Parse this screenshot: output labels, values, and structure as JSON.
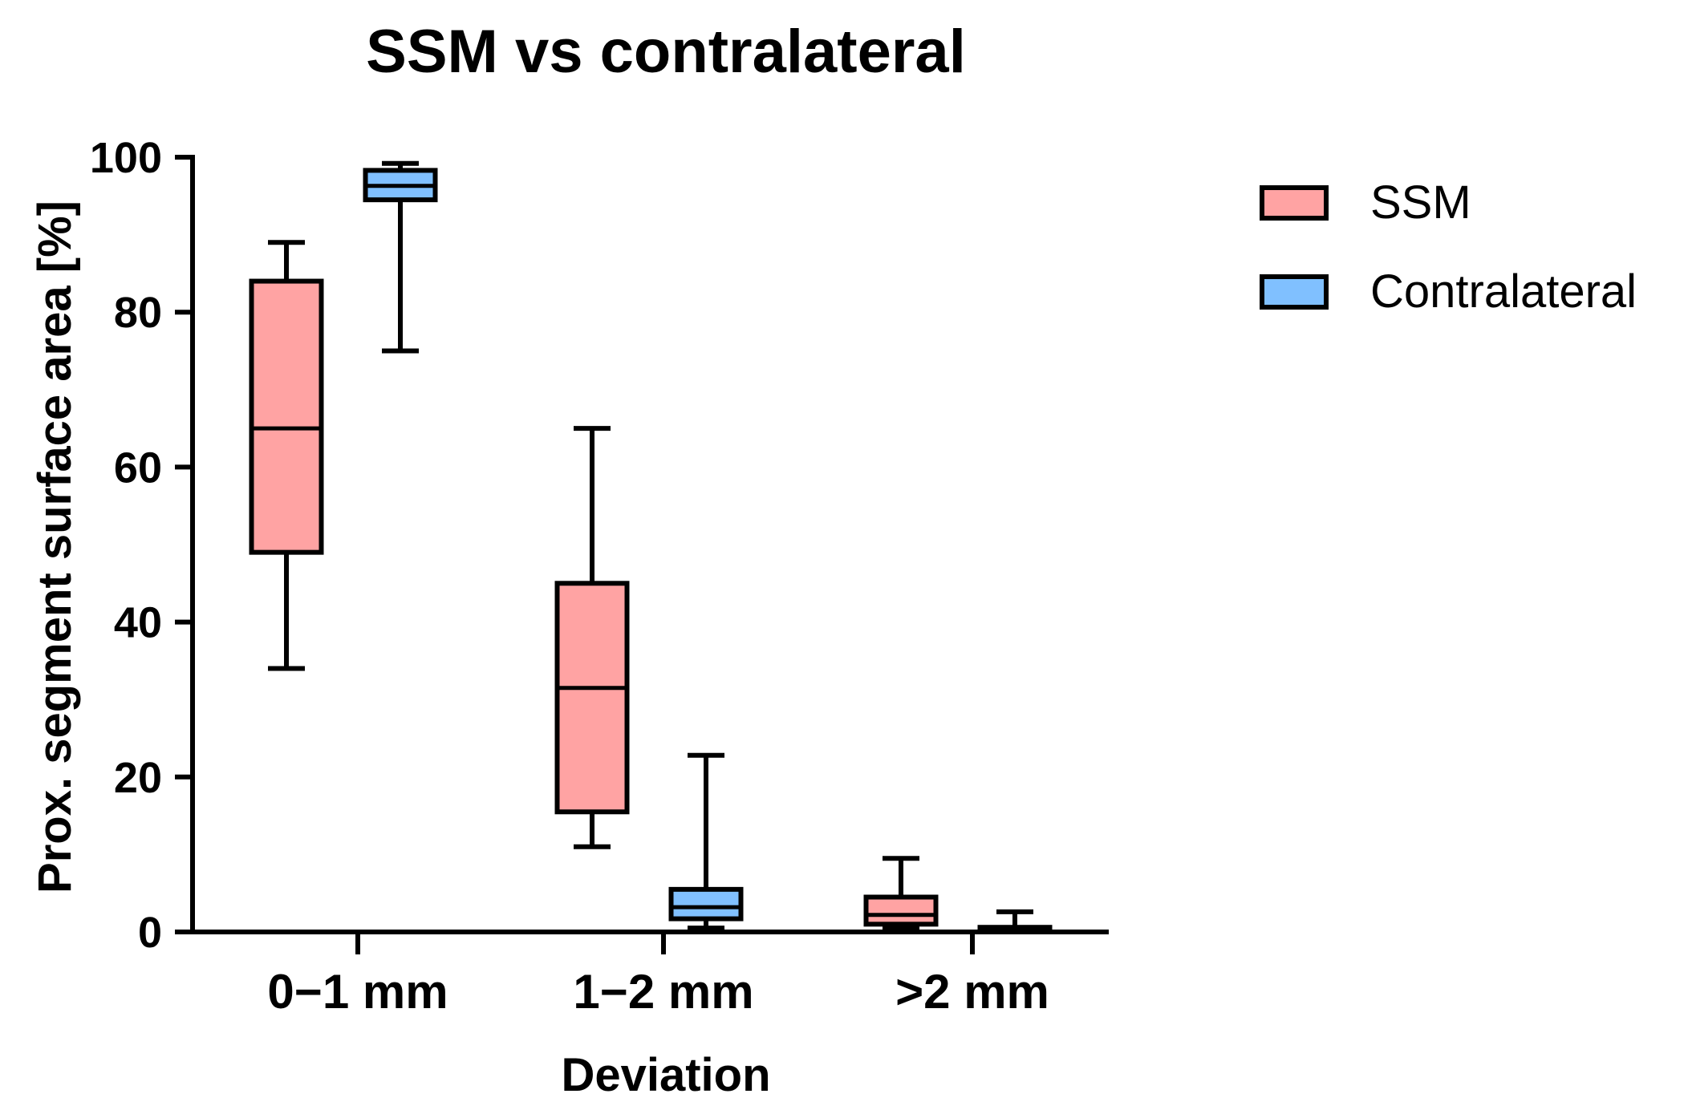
{
  "chart_data": {
    "type": "box",
    "title": "SSM vs contralateral",
    "xlabel": "Deviation",
    "ylabel": "Prox. segment surface area [%]",
    "ylim": [
      0,
      100
    ],
    "yticks": [
      0,
      20,
      40,
      60,
      80,
      100
    ],
    "categories": [
      "0−1 mm",
      "1−2 mm",
      ">2 mm"
    ],
    "legend_position": "top-right",
    "series": [
      {
        "name": "SSM",
        "color": "#FFA3A3",
        "boxes": [
          {
            "min": 34,
            "q1": 49,
            "median": 65,
            "q3": 84,
            "max": 89
          },
          {
            "min": 11,
            "q1": 15.5,
            "median": 31.5,
            "q3": 45,
            "max": 65
          },
          {
            "min": 0.5,
            "q1": 1,
            "median": 2.2,
            "q3": 4.5,
            "max": 9.5
          }
        ]
      },
      {
        "name": "Contralateral",
        "color": "#80C0FF",
        "boxes": [
          {
            "min": 75,
            "q1": 94.5,
            "median": 96.3,
            "q3": 98.3,
            "max": 99.2
          },
          {
            "min": 0.5,
            "q1": 1.7,
            "median": 3.2,
            "q3": 5.5,
            "max": 22.8
          },
          {
            "min": 0,
            "q1": 0.1,
            "median": 0.3,
            "q3": 0.6,
            "max": 2.6
          }
        ]
      }
    ]
  }
}
